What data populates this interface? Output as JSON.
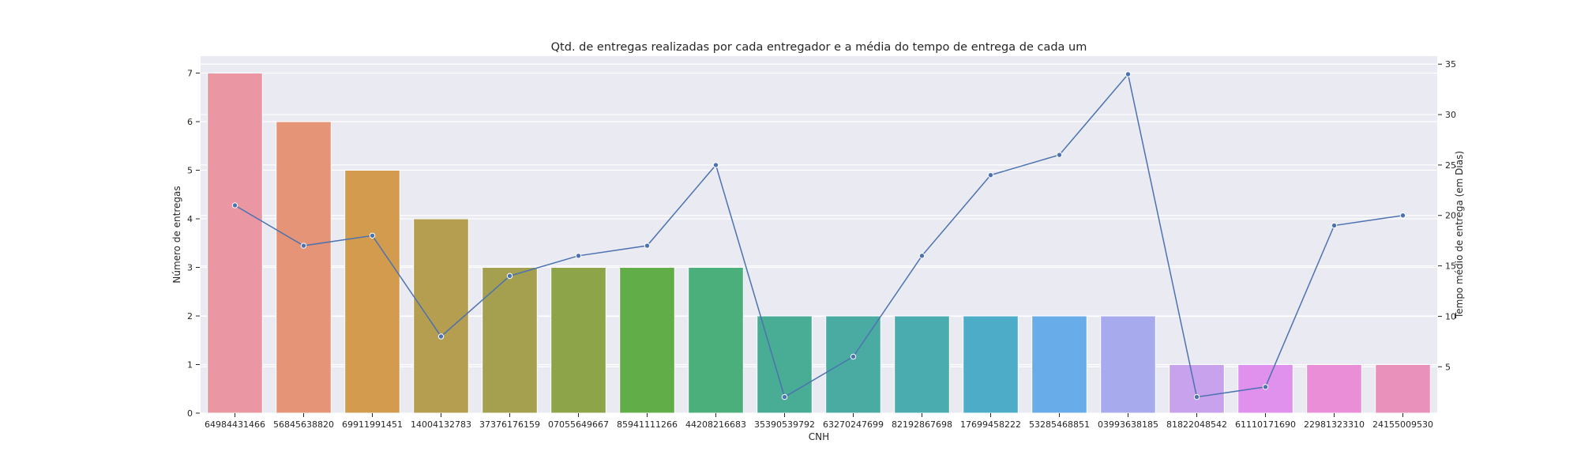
{
  "chart_data": {
    "type": "bar",
    "title": "Qtd. de entregas realizadas por cada entregador e a média do tempo de entrega de cada um",
    "xlabel": "CNH",
    "ylabel": "Número de entregas",
    "y2label": "Tempo médio de entrega (em Dias)",
    "categories": [
      "64984431466",
      "56845638820",
      "69911991451",
      "14004132783",
      "37376176159",
      "07055649667",
      "85941111266",
      "44208216683",
      "35390539792",
      "63270247699",
      "82192867698",
      "17699458222",
      "53285468851",
      "03993638185",
      "81822048542",
      "61110171690",
      "22981323310",
      "24155009530"
    ],
    "series": [
      {
        "type": "bar",
        "axis": "left",
        "values": [
          7,
          6,
          5,
          4,
          3,
          3,
          3,
          3,
          2,
          2,
          2,
          2,
          2,
          2,
          1,
          1,
          1,
          1
        ],
        "colors": [
          "#ea96a3",
          "#e69478",
          "#d39b4d",
          "#b59e4f",
          "#a4a04f",
          "#8ea449",
          "#61ad48",
          "#4aaf7b",
          "#49ad95",
          "#4aaba3",
          "#4bacaf",
          "#4dadc8",
          "#69acea",
          "#a7abee",
          "#c8a2ec",
          "#e091ee",
          "#e98ed7",
          "#e991bb"
        ]
      },
      {
        "type": "line",
        "axis": "right",
        "color": "#4c72b0",
        "values": [
          21,
          17,
          18,
          8,
          14,
          16,
          17,
          25,
          2,
          6,
          16,
          24,
          26,
          34,
          2,
          3,
          19,
          20
        ]
      }
    ],
    "ylim": [
      0,
      7.35
    ],
    "y2lim": [
      0.4,
      35.8
    ],
    "yticks": [
      0,
      1,
      2,
      3,
      4,
      5,
      6,
      7
    ],
    "y2ticks": [
      5,
      10,
      15,
      20,
      25,
      30,
      35
    ],
    "grid": true,
    "background": "#eaeaf2"
  }
}
